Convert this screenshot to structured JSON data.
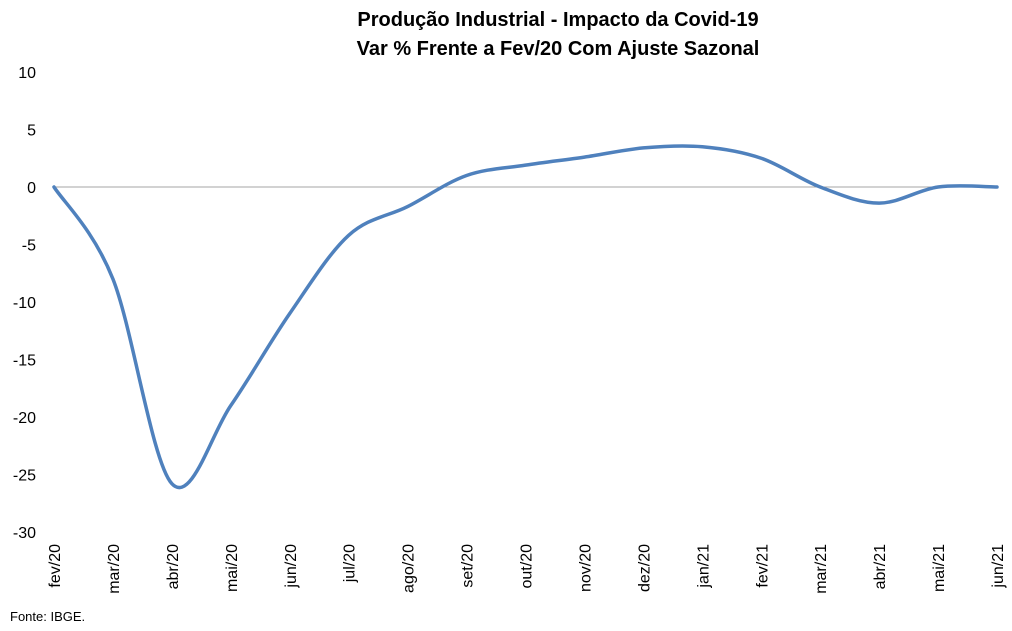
{
  "chart_data": {
    "type": "line",
    "title": "Produção Industrial - Impacto da Covid-19",
    "subtitle": "Var % Frente a Fev/20 Com Ajuste Sazonal",
    "xlabel": "",
    "ylabel": "",
    "ylim": [
      -30,
      10
    ],
    "yticks": [
      "10",
      "5",
      "0",
      "-5",
      "-10",
      "-15",
      "-20",
      "-25",
      "-30"
    ],
    "categories": [
      "fev/20",
      "mar/20",
      "abr/20",
      "mai/20",
      "jun/20",
      "jul/20",
      "ago/20",
      "set/20",
      "out/20",
      "nov/20",
      "dez/20",
      "jan/21",
      "fev/21",
      "mar/21",
      "abr/21",
      "mai/21",
      "jun/21"
    ],
    "series": [
      {
        "name": "",
        "color": "#4F81BD",
        "values": [
          0.0,
          -8.0,
          -25.8,
          -19.0,
          -11.0,
          -4.2,
          -1.7,
          1.0,
          1.9,
          2.6,
          3.4,
          3.5,
          2.5,
          0.0,
          -1.4,
          0.0,
          0.0
        ]
      }
    ],
    "zero_line": true,
    "grid": false,
    "legend": "none",
    "source": "Fonte: IBGE."
  }
}
